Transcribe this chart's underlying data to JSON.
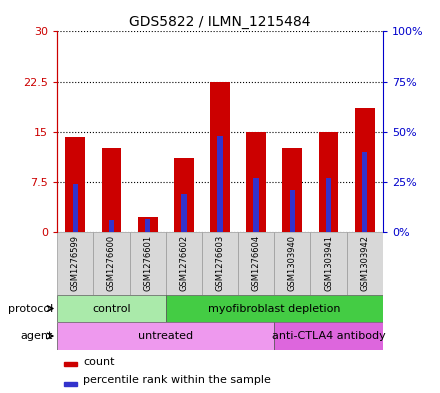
{
  "title": "GDS5822 / ILMN_1215484",
  "samples": [
    "GSM1276599",
    "GSM1276600",
    "GSM1276601",
    "GSM1276602",
    "GSM1276603",
    "GSM1276604",
    "GSM1303940",
    "GSM1303941",
    "GSM1303942"
  ],
  "count_values": [
    14.2,
    12.5,
    2.2,
    11.0,
    22.5,
    15.0,
    12.5,
    15.0,
    18.5
  ],
  "percentile_values": [
    24.0,
    6.0,
    6.5,
    19.0,
    48.0,
    27.0,
    21.0,
    27.0,
    40.0
  ],
  "ylim_left": [
    0,
    30
  ],
  "ylim_right": [
    0,
    100
  ],
  "yticks_left": [
    0,
    7.5,
    15,
    22.5,
    30
  ],
  "yticks_right": [
    0,
    25,
    50,
    75,
    100
  ],
  "ytick_labels_left": [
    "0",
    "7.5",
    "15",
    "22.5",
    "30"
  ],
  "ytick_labels_right": [
    "0%",
    "25%",
    "50%",
    "75%",
    "100%"
  ],
  "bar_color": "#cc0000",
  "percentile_color": "#3333cc",
  "bar_width": 0.55,
  "protocol_groups": [
    {
      "label": "control",
      "start": 0,
      "end": 3,
      "color": "#aaeaaa"
    },
    {
      "label": "myofibroblast depletion",
      "start": 3,
      "end": 9,
      "color": "#44cc44"
    }
  ],
  "agent_groups": [
    {
      "label": "untreated",
      "start": 0,
      "end": 6,
      "color": "#ee99ee"
    },
    {
      "label": "anti-CTLA4 antibody",
      "start": 6,
      "end": 9,
      "color": "#dd66dd"
    }
  ],
  "legend_count_label": "count",
  "legend_percentile_label": "percentile rank within the sample",
  "grid_linestyle": ":",
  "grid_color": "black",
  "axis_left_color": "#cc0000",
  "axis_right_color": "#0000cc",
  "protocol_label": "protocol",
  "agent_label": "agent",
  "sample_bg_color": "#d8d8d8"
}
